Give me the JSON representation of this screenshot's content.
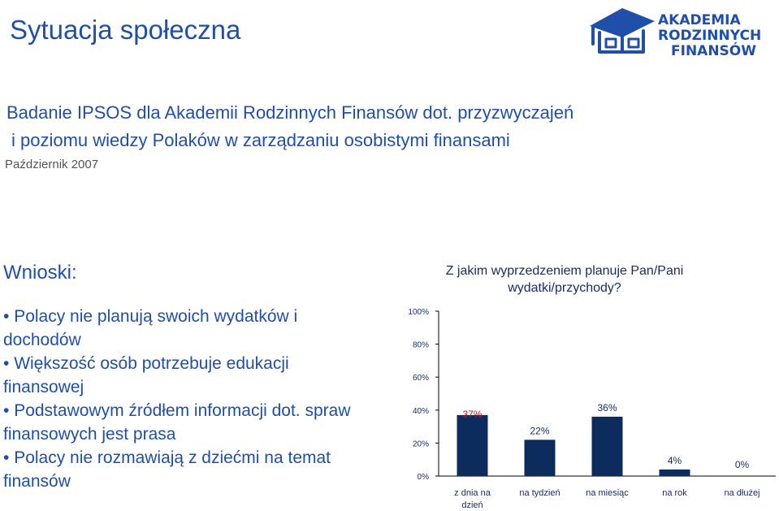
{
  "header": {
    "title": "Sytuacja społeczna",
    "subtitle_line1": "Badanie IPSOS dla Akademii Rodzinnych Finansów dot. przyzwyczajeń",
    "subtitle_line2": "i poziomu wiedzy Polaków w zarządzaniu osobistymi finansami",
    "date": "Październik 2007"
  },
  "logo": {
    "line1": "AKADEMIA",
    "line2": "RODZINNYCH",
    "line3": "FINANSÓW",
    "icon": "house-graduation-cap-icon"
  },
  "conclusions": {
    "heading": "Wnioski:",
    "items": [
      "Polacy nie planują swoich wydatków i dochodów",
      "Większość osób potrzebuje edukacji finansowej",
      "Podstawowym źródłem informacji dot. spraw  finansowych jest prasa",
      "Polacy nie rozmawiają z dziećmi na temat finansów"
    ]
  },
  "colors": {
    "title_blue": "#1f4fa8",
    "bar_fill": "#0b2c5c",
    "highlight_label": "#c0191f",
    "label_text": "#1a2d63"
  },
  "chart_data": {
    "type": "bar",
    "title": "Z jakim wyprzedzeniem planuje Pan/Pani wydatki/przychody?",
    "categories": [
      "z dnia na dzień",
      "na tydzień",
      "na miesiąc",
      "na rok",
      "na dłużej"
    ],
    "values": [
      37,
      22,
      36,
      4,
      0
    ],
    "value_labels": [
      "37%",
      "22%",
      "36%",
      "4%",
      "0%"
    ],
    "highlight_index": 0,
    "ylim": [
      0,
      100
    ],
    "yticks": [
      "0%",
      "20%",
      "40%",
      "60%",
      "80%",
      "100%"
    ],
    "grid": false,
    "legend": "none"
  }
}
